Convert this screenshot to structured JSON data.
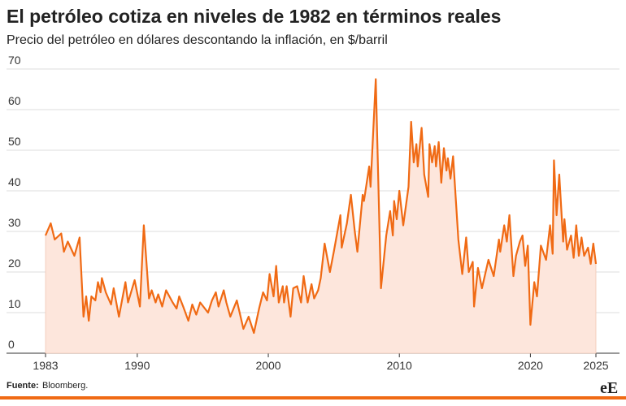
{
  "chart_data": {
    "type": "area",
    "title": "El petróleo cotiza en niveles de 1982 en términos reales",
    "subtitle": "Precio del petróleo en dólares descontando la inflación, en $/barril",
    "source_label": "Fuente:",
    "source": "Bloomberg.",
    "logo": "eE",
    "color": "#f06a14",
    "fill": "#fde6dc",
    "grid": true,
    "xlim": [
      1983,
      2025
    ],
    "xticks": [
      1983,
      1990,
      2000,
      2010,
      2020,
      2025
    ],
    "ylim": [
      0,
      70
    ],
    "yticks": [
      0,
      10,
      20,
      30,
      40,
      50,
      60,
      70
    ],
    "x": [
      1983.0,
      1983.4,
      1983.7,
      1984.2,
      1984.4,
      1984.7,
      1985.2,
      1985.6,
      1985.9,
      1986.1,
      1986.3,
      1986.5,
      1986.8,
      1987.0,
      1987.2,
      1987.3,
      1987.6,
      1988.0,
      1988.2,
      1988.6,
      1989.1,
      1989.3,
      1989.8,
      1990.2,
      1990.5,
      1990.9,
      1991.1,
      1991.4,
      1991.6,
      1991.9,
      1992.2,
      1992.7,
      1993.0,
      1993.2,
      1993.5,
      1993.9,
      1994.2,
      1994.5,
      1994.8,
      1995.4,
      1995.7,
      1996.0,
      1996.2,
      1996.6,
      1996.8,
      1997.1,
      1997.6,
      1998.1,
      1998.5,
      1998.9,
      1999.3,
      1999.6,
      1999.9,
      2000.1,
      2000.4,
      2000.6,
      2000.8,
      2001.1,
      2001.2,
      2001.4,
      2001.7,
      2001.9,
      2002.2,
      2002.5,
      2002.7,
      2003.0,
      2003.3,
      2003.5,
      2003.8,
      2004.0,
      2004.3,
      2004.7,
      2005.0,
      2005.5,
      2005.6,
      2006.0,
      2006.3,
      2006.6,
      2006.8,
      2007.2,
      2007.3,
      2007.7,
      2007.8,
      2008.2,
      2008.6,
      2009.0,
      2009.3,
      2009.5,
      2009.6,
      2009.8,
      2010.0,
      2010.3,
      2010.7,
      2010.9,
      2011.1,
      2011.3,
      2011.4,
      2011.7,
      2011.9,
      2012.2,
      2012.3,
      2012.5,
      2012.7,
      2012.8,
      2013.0,
      2013.2,
      2013.4,
      2013.6,
      2013.7,
      2013.9,
      2014.1,
      2014.5,
      2014.8,
      2015.1,
      2015.3,
      2015.6,
      2015.7,
      2016.0,
      2016.3,
      2016.8,
      2017.2,
      2017.6,
      2017.7,
      2018.0,
      2018.2,
      2018.4,
      2018.7,
      2018.9,
      2019.2,
      2019.4,
      2019.6,
      2019.8,
      2020.0,
      2020.3,
      2020.5,
      2020.8,
      2021.2,
      2021.5,
      2021.7,
      2021.8,
      2022.0,
      2022.2,
      2022.5,
      2022.6,
      2022.8,
      2023.1,
      2023.3,
      2023.5,
      2023.7,
      2023.9,
      2024.1,
      2024.4,
      2024.6,
      2024.8,
      2025.0
    ],
    "values": [
      29,
      32,
      28,
      29.5,
      25,
      27.5,
      24,
      28.5,
      9,
      14,
      8,
      14,
      13,
      17.5,
      15,
      18.5,
      15,
      12,
      16,
      9,
      17.5,
      12.5,
      18,
      11.5,
      31.5,
      13.5,
      15.5,
      12.5,
      14.5,
      11.5,
      15.5,
      12.5,
      11,
      14,
      11.5,
      8,
      12,
      9.5,
      12.5,
      10,
      13,
      15,
      11.5,
      15.5,
      12.5,
      9,
      13,
      6,
      9,
      5,
      11,
      15,
      13,
      19.5,
      14,
      21.5,
      12.5,
      16.5,
      12.5,
      16.5,
      9,
      16,
      16.5,
      12.5,
      19,
      12.5,
      17,
      13.5,
      15.5,
      18.5,
      27,
      20,
      25,
      34,
      26,
      32,
      39,
      30,
      25,
      39,
      37.5,
      46,
      41,
      67.5,
      16,
      29,
      35,
      29,
      37.5,
      33,
      40,
      31.5,
      41,
      57,
      47,
      51.5,
      46,
      55.5,
      44,
      38.5,
      51.5,
      47,
      51,
      46,
      52,
      42,
      50.5,
      45,
      48,
      43,
      48.5,
      28,
      19.5,
      28.5,
      20,
      22.5,
      11.5,
      21,
      16,
      23,
      19,
      28,
      25,
      31.5,
      27.5,
      34,
      19,
      24,
      27.5,
      29,
      21.5,
      26.5,
      7,
      17.5,
      14,
      26.5,
      23,
      31.5,
      24.5,
      47.5,
      34,
      44,
      27.5,
      33,
      25.5,
      29,
      23.5,
      31.5,
      24,
      28.5,
      24,
      26,
      22,
      27,
      22
    ]
  }
}
